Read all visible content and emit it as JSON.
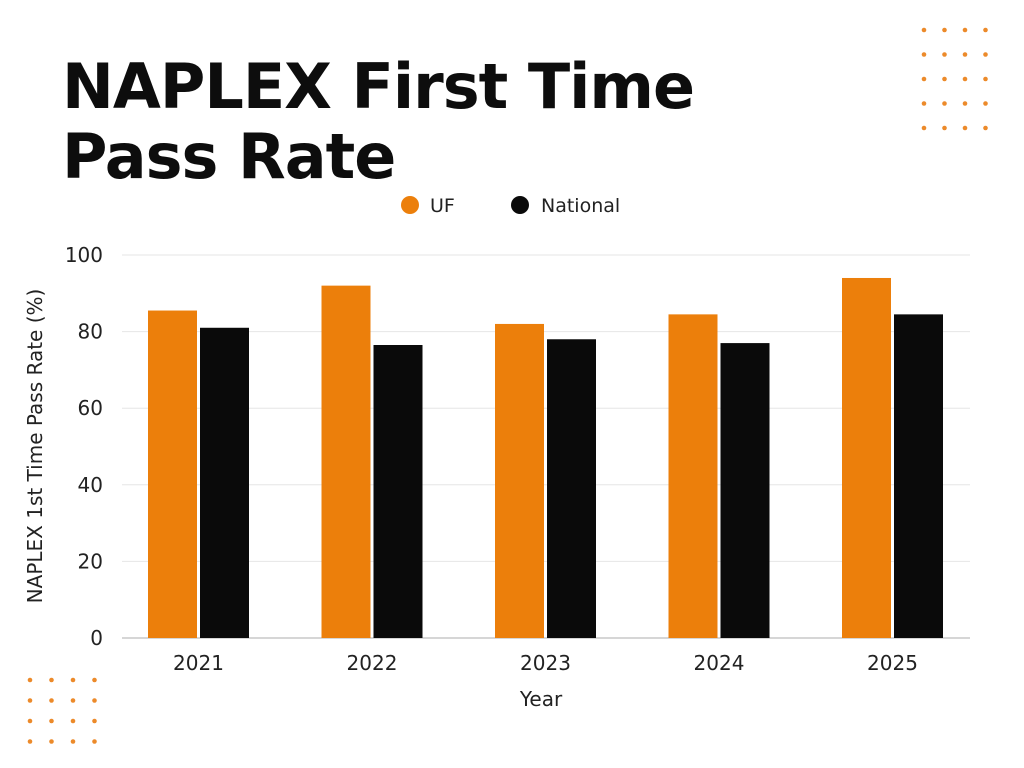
{
  "chart_data": {
    "type": "bar",
    "title_lines": [
      "NAPLEX First Time",
      "Pass Rate"
    ],
    "xlabel": "Year",
    "ylabel": "NAPLEX 1st Time Pass Rate (%)",
    "categories": [
      "2021",
      "2022",
      "2023",
      "2024",
      "2025"
    ],
    "series": [
      {
        "name": "UF",
        "color": "#ec7f0b",
        "values": [
          85.5,
          92,
          82,
          84.5,
          94
        ]
      },
      {
        "name": "National",
        "color": "#0a0a0a",
        "values": [
          81,
          76.5,
          78,
          77,
          84.5
        ]
      }
    ],
    "ylim": [
      0,
      100
    ],
    "yticks": [
      "0",
      "20",
      "40",
      "60",
      "80",
      "100"
    ],
    "grid": true,
    "legend_position": "top-center"
  },
  "decoration": {
    "dot_color": "#ec8a2a"
  }
}
